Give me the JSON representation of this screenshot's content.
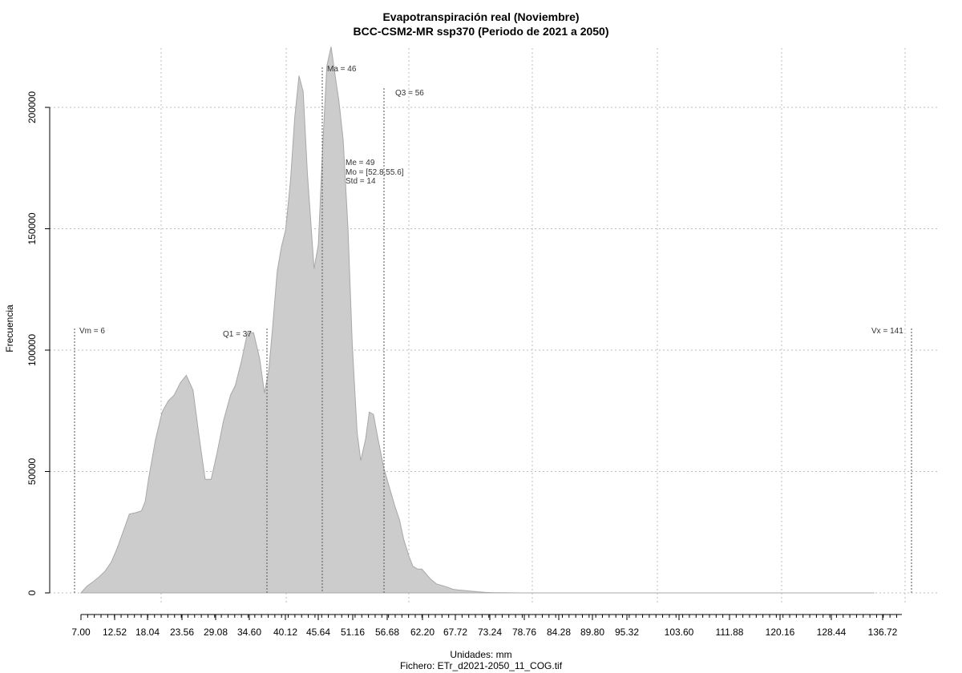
{
  "chart_data": {
    "type": "area",
    "title": "Evapotranspiración real (Noviembre)",
    "subtitle": "BCC-CSM2-MR ssp370 (Periodo de 2021 a 2050)",
    "xlabel": "Unidades: mm",
    "ylabel": "Frecuencia",
    "caption": "Fichero: ETr_d2021-2050_11_COG.tif",
    "xlim": [
      4,
      142
    ],
    "ylim": [
      0,
      200000
    ],
    "grid": true,
    "fill_color": "#cccccc",
    "line_color": "#a8a8a8",
    "x_ticks": [
      7.0,
      12.52,
      18.04,
      23.56,
      29.08,
      34.6,
      40.12,
      45.64,
      51.16,
      56.68,
      62.2,
      67.72,
      73.24,
      78.76,
      84.28,
      89.8,
      95.32,
      103.6,
      111.88,
      120.16,
      128.44,
      136.72
    ],
    "x_tick_labels": [
      "7.00",
      "12.52",
      "18.04",
      "23.56",
      "29.08",
      "34.60",
      "40.12",
      "45.64",
      "51.16",
      "56.68",
      "62.20",
      "67.72",
      "73.24",
      "78.76",
      "84.28",
      "89.80",
      "95.32",
      "103.60",
      "111.88",
      "120.16",
      "128.44",
      "136.72"
    ],
    "y_ticks": [
      0,
      50000,
      100000,
      150000,
      200000
    ],
    "y_tick_labels": [
      "0",
      "50000",
      "100000",
      "150000",
      "200000"
    ],
    "x": [
      7.0,
      8.0,
      9.0,
      10.0,
      11.0,
      12.0,
      13.0,
      14.0,
      15.0,
      16.0,
      17.0,
      17.6,
      18.2,
      19.3,
      20.4,
      21.4,
      22.4,
      23.4,
      24.4,
      25.5,
      26.5,
      27.5,
      28.5,
      29.5,
      30.5,
      31.2,
      31.7,
      32.5,
      33.5,
      34.5,
      35.5,
      36.5,
      37.3,
      38.0,
      38.6,
      39.4,
      40.1,
      40.8,
      41.6,
      42.3,
      43.0,
      43.7,
      44.4,
      45.5,
      46.2,
      46.9,
      47.6,
      48.3,
      49.0,
      49.6,
      50.3,
      51.1,
      51.8,
      52.6,
      53.2,
      54.0,
      54.6,
      55.3,
      56.0,
      57.0,
      58.0,
      58.8,
      59.6,
      60.3,
      61.1,
      61.8,
      62.6,
      63.3,
      64.0,
      64.8,
      65.7,
      66.8,
      67.7,
      68.4,
      69.3,
      70.3,
      71.5,
      72.7,
      73.9,
      75.2,
      76.6,
      78.0,
      79.5,
      81.0,
      82.5,
      84.3,
      86.0,
      87.5,
      89.8,
      92.0,
      95.3,
      100.0,
      110.0,
      120.0,
      130.0,
      138.0
    ],
    "values": [
      0,
      2800,
      4600,
      6600,
      9000,
      12700,
      18500,
      25500,
      32500,
      33000,
      33800,
      37700,
      47500,
      63000,
      74500,
      79000,
      81500,
      86500,
      89600,
      83500,
      64500,
      46800,
      46800,
      58000,
      70500,
      77000,
      81500,
      85500,
      95500,
      107200,
      107200,
      96500,
      82300,
      91500,
      108000,
      132500,
      142500,
      149500,
      170000,
      196000,
      213000,
      206500,
      172500,
      133500,
      143500,
      183000,
      217000,
      225000,
      212500,
      202500,
      186500,
      150000,
      102500,
      66000,
      54500,
      63500,
      74500,
      73500,
      64000,
      51500,
      42800,
      36000,
      30000,
      22000,
      15500,
      11000,
      9800,
      9800,
      7800,
      5500,
      3700,
      2900,
      2200,
      1500,
      1200,
      1000,
      700,
      400,
      200,
      100,
      50,
      20,
      0,
      0,
      0,
      0,
      0,
      0,
      0,
      0,
      0,
      0,
      0,
      0,
      0,
      0
    ],
    "annotations": [
      {
        "label": "Vm = 6",
        "x": 6.0
      },
      {
        "label": "Q1 = 37",
        "x": 36.8
      },
      {
        "label": "Ma = 46",
        "x": 45.8
      },
      {
        "label": "Q3 = 56",
        "x": 56.0
      },
      {
        "label": "Vx = 141",
        "x": 141.0
      }
    ],
    "stats_text": [
      "Me = 49",
      "Mo = [52.8,55.6]",
      "Std = 14"
    ]
  }
}
